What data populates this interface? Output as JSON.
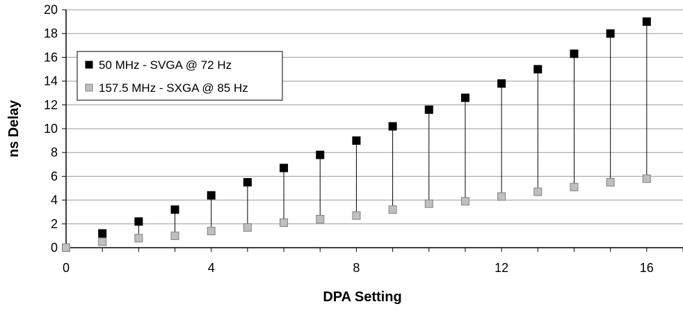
{
  "chart_data": {
    "type": "scatter",
    "title": "",
    "xlabel": "DPA Setting",
    "ylabel": "ns Delay",
    "xlim": [
      0,
      17
    ],
    "ylim": [
      0,
      20
    ],
    "x_ticks": [
      0,
      4,
      8,
      12,
      16
    ],
    "y_ticks": [
      0,
      2,
      4,
      6,
      8,
      10,
      12,
      14,
      16,
      18,
      20
    ],
    "grid": "horizontal",
    "legend_position": "top-left",
    "drop_lines": true,
    "x": [
      0,
      1,
      2,
      3,
      4,
      5,
      6,
      7,
      8,
      9,
      10,
      11,
      12,
      13,
      14,
      15,
      16
    ],
    "series": [
      {
        "name": "50 MHz - SVGA @ 72 Hz",
        "color": "#000000",
        "marker": "square",
        "values": [
          0,
          1.2,
          2.2,
          3.2,
          4.4,
          5.5,
          6.7,
          7.8,
          9.0,
          10.2,
          11.6,
          12.6,
          13.8,
          15.0,
          16.3,
          18.0,
          19.0
        ]
      },
      {
        "name": "157.5 MHz - SXGA @ 85 Hz",
        "color": "#bfbfbf",
        "marker": "square",
        "values": [
          0,
          0.5,
          0.8,
          1.0,
          1.4,
          1.7,
          2.1,
          2.4,
          2.7,
          3.2,
          3.7,
          3.9,
          4.3,
          4.7,
          5.1,
          5.5,
          5.8
        ]
      }
    ]
  }
}
